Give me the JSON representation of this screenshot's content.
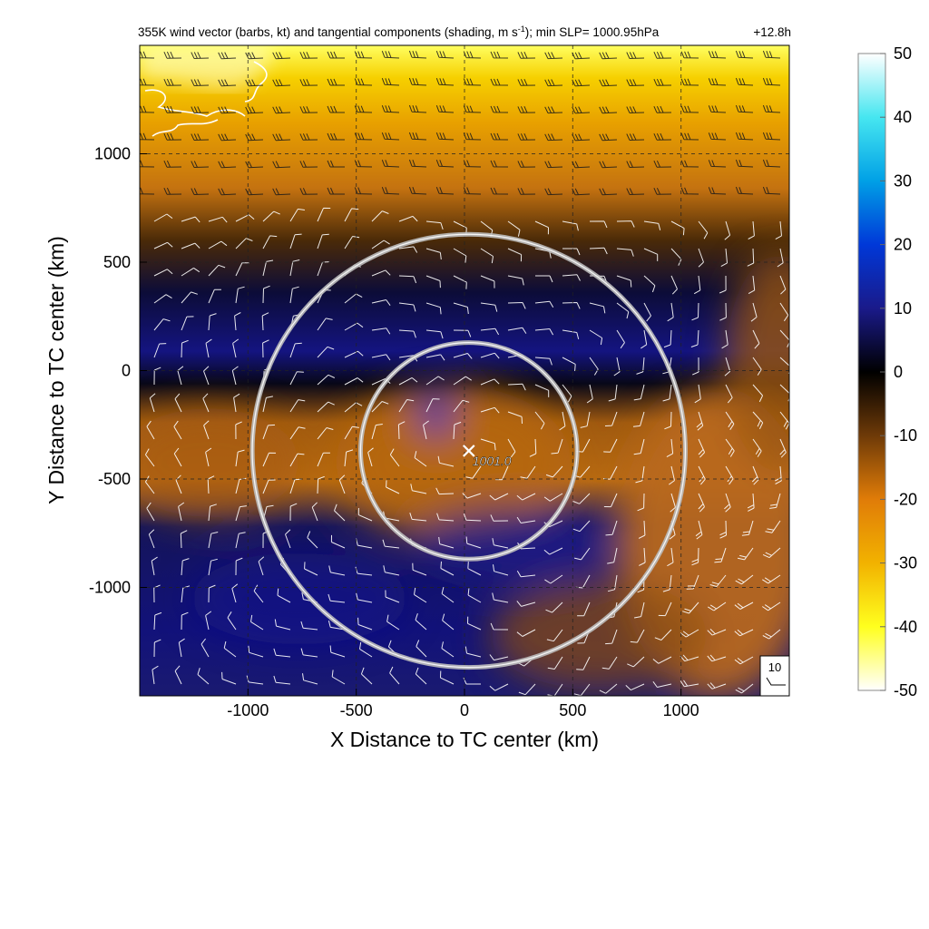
{
  "chart_data": {
    "type": "heatmap",
    "title": {
      "pre": "355K wind vector (barbs, kt) and tangential components (shading, m s",
      "sup": "-1",
      "post": "); min SLP= 1000.95hPa",
      "time": "+12.8h"
    },
    "xlabel": "X Distance to TC center (km)",
    "ylabel": "Y Distance to TC center (km)",
    "xlim": [
      -1500,
      1500
    ],
    "ylim": [
      -1500,
      1500
    ],
    "xticks": [
      -1000,
      -500,
      0,
      500,
      1000
    ],
    "yticks": [
      -1000,
      -500,
      0,
      500,
      1000
    ],
    "grid": true,
    "colorbar": {
      "min": -50,
      "max": 50,
      "ticks": [
        50,
        40,
        30,
        20,
        10,
        0,
        -10,
        -20,
        -30,
        -40,
        -50
      ],
      "stops": [
        {
          "v": 50,
          "c": "#ffffff"
        },
        {
          "v": 40,
          "c": "#46e6f0"
        },
        {
          "v": 30,
          "c": "#00a0e6"
        },
        {
          "v": 20,
          "c": "#0038d8"
        },
        {
          "v": 10,
          "c": "#1a1a8a"
        },
        {
          "v": 0,
          "c": "#000000"
        },
        {
          "v": -10,
          "c": "#6e3a08"
        },
        {
          "v": -20,
          "c": "#e07c08"
        },
        {
          "v": -30,
          "c": "#f2b200"
        },
        {
          "v": -40,
          "c": "#ffff1e"
        },
        {
          "v": -50,
          "c": "#ffffff"
        }
      ]
    },
    "center": {
      "x": 20,
      "y": -370,
      "label": "1001.0"
    },
    "range_rings_km": [
      500,
      1000
    ],
    "reference_barb_kt": "10"
  }
}
